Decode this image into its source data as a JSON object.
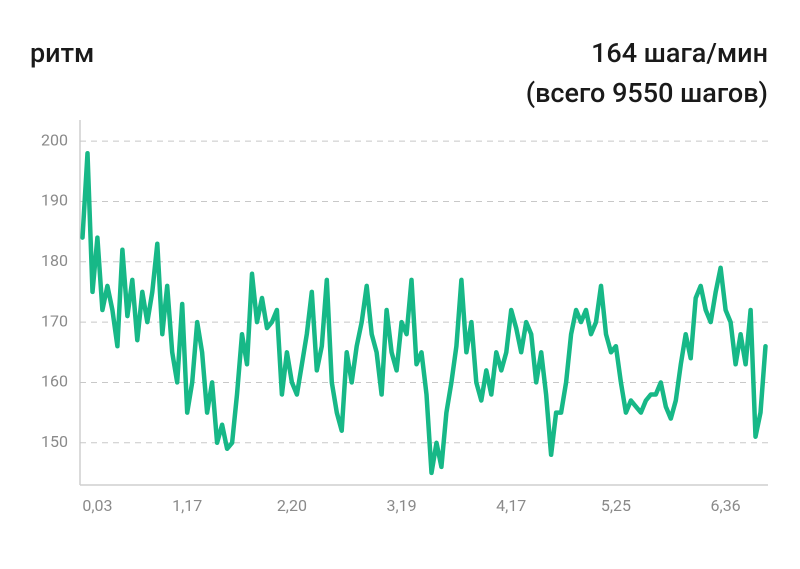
{
  "chart_data": {
    "type": "line",
    "title": "ритм",
    "annotations": [
      "164 шага/мин",
      "(всего 9550 шагов)"
    ],
    "color": "#17b887",
    "grid": true,
    "ylim": [
      143,
      203.5
    ],
    "yticks": [
      150,
      160,
      170,
      180,
      190,
      200
    ],
    "categories": [
      null,
      null,
      null,
      "0,03",
      null,
      null,
      null,
      null,
      null,
      null,
      null,
      null,
      null,
      null,
      null,
      null,
      null,
      null,
      null,
      null,
      null,
      "1,17",
      null,
      null,
      null,
      null,
      null,
      null,
      null,
      null,
      null,
      null,
      null,
      null,
      null,
      null,
      null,
      null,
      null,
      null,
      null,
      null,
      "2,20",
      null,
      null,
      null,
      null,
      null,
      null,
      null,
      null,
      null,
      null,
      null,
      null,
      null,
      null,
      null,
      null,
      null,
      null,
      null,
      null,
      null,
      "3,19",
      null,
      null,
      null,
      null,
      null,
      null,
      null,
      null,
      null,
      null,
      null,
      null,
      null,
      null,
      null,
      null,
      null,
      null,
      null,
      null,
      null,
      "4,17",
      null,
      null,
      null,
      null,
      null,
      null,
      null,
      null,
      null,
      null,
      null,
      null,
      null,
      null,
      null,
      null,
      null,
      null,
      null,
      null,
      "5,25",
      null,
      null,
      null,
      null,
      null,
      null,
      null,
      null,
      null,
      null,
      null,
      null,
      null,
      null,
      null,
      null,
      null,
      null,
      null,
      null,
      null,
      "6,36",
      null,
      null,
      null,
      null,
      null,
      null,
      null,
      null
    ],
    "values": [
      184,
      198,
      175,
      184,
      172,
      176,
      172,
      166,
      182,
      171,
      177,
      167,
      175,
      170,
      175,
      183,
      168,
      176,
      165,
      160,
      173,
      155,
      160,
      170,
      165,
      155,
      160,
      150,
      153,
      149,
      150,
      158,
      168,
      163,
      178,
      170,
      174,
      169,
      170,
      172,
      158,
      165,
      160,
      158,
      163,
      168,
      175,
      162,
      166,
      177,
      160,
      155,
      152,
      165,
      160,
      166,
      170,
      176,
      168,
      165,
      158,
      172,
      165,
      162,
      170,
      168,
      177,
      163,
      165,
      158,
      145,
      150,
      146,
      155,
      160,
      166,
      177,
      165,
      170,
      160,
      157,
      162,
      158,
      165,
      162,
      165,
      172,
      169,
      165,
      170,
      168,
      160,
      165,
      158,
      148,
      155,
      155,
      160,
      168,
      172,
      170,
      172,
      168,
      170,
      176,
      168,
      165,
      166,
      160,
      155,
      157,
      156,
      155,
      157,
      158,
      158,
      160,
      156,
      154,
      157,
      163,
      168,
      164,
      174,
      176,
      172,
      170,
      175,
      179,
      172,
      170,
      163,
      168,
      163,
      172,
      151,
      155,
      166
    ]
  }
}
